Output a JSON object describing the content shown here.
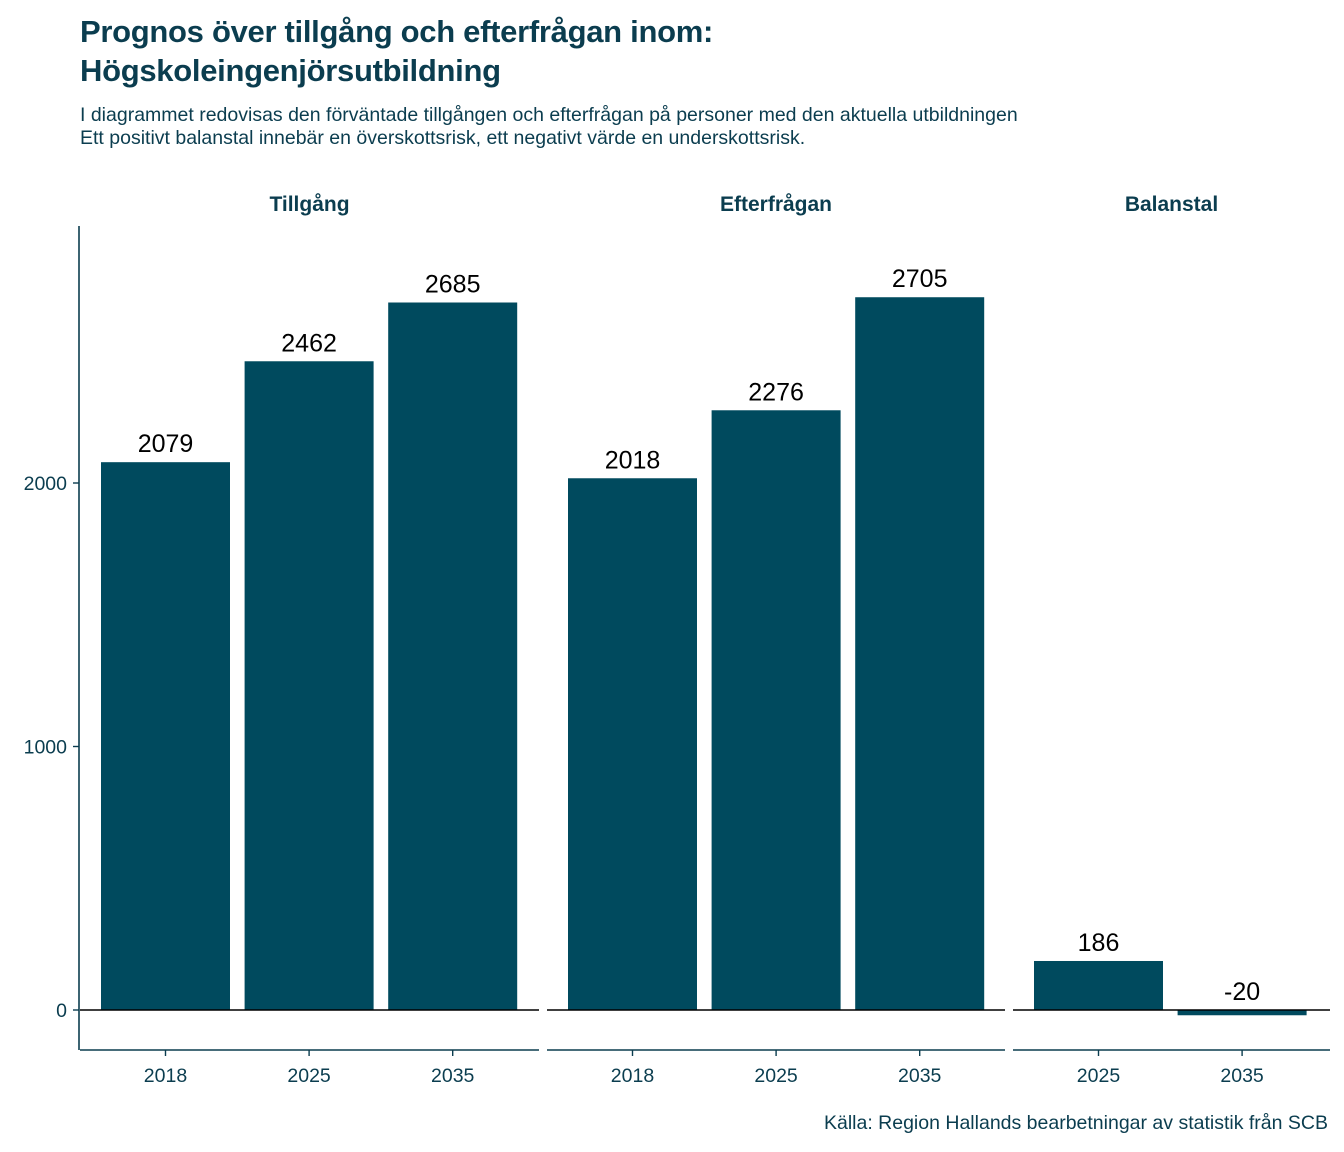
{
  "header": {
    "title_line1": "Prognos över tillgång och efterfrågan inom:",
    "title_line2": "Högskoleingenjörsutbildning",
    "subtitle_line1": "I diagrammet redovisas den förväntade tillgången och efterfrågan på personer med den aktuella utbildningen",
    "subtitle_line2": "Ett positivt balanstal innebär en överskottsrisk, ett negativt värde en underskottsrisk."
  },
  "footer": {
    "caption": "Källa: Region Hallands bearbetningar av statistik från SCB"
  },
  "colors": {
    "bar": "#004a5e",
    "text": "#0b3d4f",
    "axis": "#0b3d4f",
    "zero_line": "#000000"
  },
  "chart_data": {
    "type": "bar",
    "y_axis": {
      "ylim": [
        -150,
        2880
      ],
      "ticks": [
        0,
        1000,
        2000
      ],
      "tick_labels": [
        "0",
        "1000",
        "2000"
      ]
    },
    "grid": false,
    "facets": [
      {
        "label": "Tillgång",
        "categories": [
          "2018",
          "2025",
          "2035"
        ],
        "values": [
          2079,
          2462,
          2685
        ],
        "value_labels": [
          "2079",
          "2462",
          "2685"
        ]
      },
      {
        "label": "Efterfrågan",
        "categories": [
          "2018",
          "2025",
          "2035"
        ],
        "values": [
          2018,
          2276,
          2705
        ],
        "value_labels": [
          "2018",
          "2276",
          "2705"
        ]
      },
      {
        "label": "Balanstal",
        "categories": [
          "2025",
          "2035"
        ],
        "values": [
          186,
          -20
        ],
        "value_labels": [
          "186",
          "-20"
        ]
      }
    ]
  }
}
